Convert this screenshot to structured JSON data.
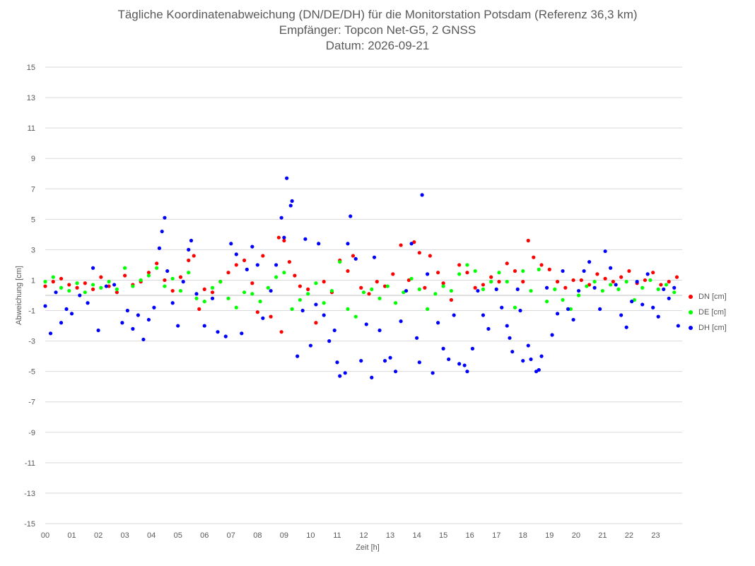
{
  "chart_data": {
    "type": "scatter",
    "title": "Tägliche Koordinatenabweichung (DN/DE/DH) für die Monitorstation Potsdam (Referenz 36,3 km)",
    "subtitle1": "Empfänger: Topcon Net-G5, 2 GNSS",
    "subtitle2": "Datum: 2026-09-21",
    "xlabel": "Zeit [h]",
    "ylabel": "Abweichung [cm]",
    "xlim": [
      0,
      24
    ],
    "ylim": [
      -15,
      15
    ],
    "x_ticks": [
      "00",
      "01",
      "02",
      "03",
      "04",
      "05",
      "06",
      "07",
      "08",
      "09",
      "10",
      "11",
      "12",
      "13",
      "14",
      "15",
      "16",
      "17",
      "18",
      "19",
      "20",
      "21",
      "22",
      "23"
    ],
    "y_ticks": [
      15,
      13,
      11,
      9,
      7,
      5,
      3,
      1,
      -1,
      -3,
      -5,
      -7,
      -9,
      -11,
      -13,
      -15
    ],
    "grid": "horizontal",
    "legend_position": "right",
    "series": [
      {
        "name": "DN [cm]",
        "color": "#ff0000",
        "values": [
          [
            0.0,
            0.6
          ],
          [
            0.3,
            0.9
          ],
          [
            0.6,
            1.1
          ],
          [
            0.9,
            0.7
          ],
          [
            1.2,
            0.5
          ],
          [
            1.5,
            0.8
          ],
          [
            1.8,
            0.4
          ],
          [
            2.1,
            1.2
          ],
          [
            2.4,
            0.6
          ],
          [
            2.7,
            0.2
          ],
          [
            3.0,
            1.3
          ],
          [
            3.3,
            0.7
          ],
          [
            3.6,
            0.9
          ],
          [
            3.9,
            1.5
          ],
          [
            4.2,
            2.1
          ],
          [
            4.5,
            1.0
          ],
          [
            4.8,
            0.3
          ],
          [
            5.1,
            1.2
          ],
          [
            5.4,
            2.3
          ],
          [
            5.6,
            2.6
          ],
          [
            5.8,
            -0.9
          ],
          [
            6.0,
            0.4
          ],
          [
            6.3,
            0.2
          ],
          [
            6.6,
            0.9
          ],
          [
            6.9,
            1.5
          ],
          [
            7.2,
            2.0
          ],
          [
            7.5,
            2.3
          ],
          [
            7.8,
            0.8
          ],
          [
            8.0,
            -1.1
          ],
          [
            8.2,
            2.6
          ],
          [
            8.5,
            -1.4
          ],
          [
            8.8,
            3.8
          ],
          [
            9.0,
            3.6
          ],
          [
            9.2,
            2.2
          ],
          [
            8.9,
            -2.4
          ],
          [
            9.4,
            1.3
          ],
          [
            9.6,
            0.6
          ],
          [
            9.9,
            0.4
          ],
          [
            10.2,
            -1.8
          ],
          [
            10.5,
            0.9
          ],
          [
            10.8,
            0.2
          ],
          [
            11.1,
            2.3
          ],
          [
            11.4,
            1.6
          ],
          [
            11.6,
            2.6
          ],
          [
            11.9,
            0.5
          ],
          [
            12.2,
            0.1
          ],
          [
            12.5,
            0.9
          ],
          [
            12.8,
            0.6
          ],
          [
            13.1,
            1.4
          ],
          [
            13.4,
            3.3
          ],
          [
            13.7,
            1.0
          ],
          [
            13.9,
            3.5
          ],
          [
            14.1,
            2.8
          ],
          [
            14.3,
            0.5
          ],
          [
            14.5,
            2.6
          ],
          [
            14.8,
            1.5
          ],
          [
            15.0,
            0.8
          ],
          [
            15.3,
            -0.3
          ],
          [
            15.6,
            2.0
          ],
          [
            15.9,
            1.5
          ],
          [
            16.2,
            0.5
          ],
          [
            16.5,
            0.7
          ],
          [
            16.8,
            1.2
          ],
          [
            17.1,
            0.9
          ],
          [
            17.4,
            2.1
          ],
          [
            17.7,
            1.6
          ],
          [
            18.0,
            0.9
          ],
          [
            18.2,
            3.6
          ],
          [
            18.4,
            2.5
          ],
          [
            18.7,
            2.0
          ],
          [
            19.0,
            1.7
          ],
          [
            19.3,
            0.9
          ],
          [
            19.6,
            0.5
          ],
          [
            19.9,
            1.0
          ],
          [
            20.2,
            1.0
          ],
          [
            20.5,
            0.7
          ],
          [
            20.8,
            1.4
          ],
          [
            21.1,
            1.1
          ],
          [
            21.4,
            0.9
          ],
          [
            21.7,
            1.2
          ],
          [
            22.0,
            1.6
          ],
          [
            22.3,
            0.8
          ],
          [
            22.6,
            1.0
          ],
          [
            22.9,
            1.5
          ],
          [
            23.2,
            0.7
          ],
          [
            23.5,
            0.9
          ],
          [
            23.8,
            1.2
          ]
        ]
      },
      {
        "name": "DE [cm]",
        "color": "#00ff00",
        "values": [
          [
            0.0,
            0.9
          ],
          [
            0.3,
            1.2
          ],
          [
            0.6,
            0.5
          ],
          [
            0.9,
            0.3
          ],
          [
            1.2,
            0.8
          ],
          [
            1.5,
            0.2
          ],
          [
            1.8,
            0.7
          ],
          [
            2.1,
            0.5
          ],
          [
            2.4,
            0.9
          ],
          [
            2.7,
            0.4
          ],
          [
            3.0,
            1.8
          ],
          [
            3.3,
            0.6
          ],
          [
            3.6,
            1.0
          ],
          [
            3.9,
            1.3
          ],
          [
            4.2,
            1.8
          ],
          [
            4.5,
            0.6
          ],
          [
            4.8,
            1.1
          ],
          [
            5.1,
            0.3
          ],
          [
            5.4,
            1.5
          ],
          [
            5.7,
            -0.2
          ],
          [
            6.0,
            -0.4
          ],
          [
            6.3,
            0.5
          ],
          [
            6.6,
            0.9
          ],
          [
            6.9,
            -0.2
          ],
          [
            7.2,
            -0.8
          ],
          [
            7.5,
            0.2
          ],
          [
            7.8,
            0.1
          ],
          [
            8.1,
            -0.4
          ],
          [
            8.4,
            0.5
          ],
          [
            8.7,
            1.2
          ],
          [
            9.0,
            1.5
          ],
          [
            9.3,
            -0.9
          ],
          [
            9.6,
            -0.3
          ],
          [
            9.9,
            0.1
          ],
          [
            10.2,
            0.8
          ],
          [
            10.5,
            -0.5
          ],
          [
            10.8,
            0.3
          ],
          [
            11.1,
            2.2
          ],
          [
            11.4,
            -0.9
          ],
          [
            11.7,
            -1.4
          ],
          [
            12.0,
            0.2
          ],
          [
            12.3,
            0.4
          ],
          [
            12.6,
            -0.2
          ],
          [
            12.9,
            0.6
          ],
          [
            13.2,
            -0.5
          ],
          [
            13.5,
            0.2
          ],
          [
            13.8,
            1.1
          ],
          [
            14.1,
            0.4
          ],
          [
            14.4,
            -0.9
          ],
          [
            14.7,
            0.1
          ],
          [
            15.0,
            0.6
          ],
          [
            15.3,
            0.3
          ],
          [
            15.6,
            1.4
          ],
          [
            15.9,
            2.0
          ],
          [
            16.2,
            1.6
          ],
          [
            16.5,
            0.4
          ],
          [
            16.8,
            0.9
          ],
          [
            17.1,
            1.5
          ],
          [
            17.4,
            0.9
          ],
          [
            17.7,
            -0.8
          ],
          [
            18.0,
            1.6
          ],
          [
            18.3,
            0.3
          ],
          [
            18.6,
            1.7
          ],
          [
            18.9,
            -0.4
          ],
          [
            19.2,
            0.4
          ],
          [
            19.5,
            -0.3
          ],
          [
            19.8,
            -0.9
          ],
          [
            20.1,
            0.0
          ],
          [
            20.4,
            0.6
          ],
          [
            20.7,
            0.9
          ],
          [
            21.0,
            0.3
          ],
          [
            21.3,
            0.7
          ],
          [
            21.6,
            0.4
          ],
          [
            21.9,
            0.9
          ],
          [
            22.2,
            -0.3
          ],
          [
            22.5,
            0.5
          ],
          [
            22.8,
            1.0
          ],
          [
            23.1,
            0.4
          ],
          [
            23.4,
            0.7
          ],
          [
            23.7,
            0.2
          ]
        ]
      },
      {
        "name": "DH [cm]",
        "color": "#0000ff",
        "values": [
          [
            0.0,
            -0.7
          ],
          [
            0.2,
            -2.5
          ],
          [
            0.4,
            0.2
          ],
          [
            0.6,
            -1.8
          ],
          [
            0.8,
            -0.9
          ],
          [
            1.0,
            -1.2
          ],
          [
            1.3,
            0.0
          ],
          [
            1.6,
            -0.5
          ],
          [
            1.8,
            1.8
          ],
          [
            2.0,
            -2.3
          ],
          [
            2.3,
            0.6
          ],
          [
            2.6,
            0.7
          ],
          [
            2.9,
            -1.8
          ],
          [
            3.1,
            -1.0
          ],
          [
            3.3,
            -2.2
          ],
          [
            3.5,
            -1.3
          ],
          [
            3.7,
            -2.9
          ],
          [
            3.9,
            -1.6
          ],
          [
            4.1,
            -0.8
          ],
          [
            4.3,
            3.1
          ],
          [
            4.4,
            4.2
          ],
          [
            4.5,
            5.1
          ],
          [
            4.6,
            1.6
          ],
          [
            4.8,
            -0.5
          ],
          [
            5.0,
            -2.0
          ],
          [
            5.2,
            0.9
          ],
          [
            5.4,
            3.0
          ],
          [
            5.5,
            3.6
          ],
          [
            5.7,
            0.1
          ],
          [
            6.0,
            -2.0
          ],
          [
            6.3,
            -0.2
          ],
          [
            6.5,
            -2.4
          ],
          [
            6.8,
            -2.7
          ],
          [
            7.0,
            3.4
          ],
          [
            7.2,
            2.7
          ],
          [
            7.4,
            -2.5
          ],
          [
            7.6,
            1.7
          ],
          [
            7.8,
            3.2
          ],
          [
            8.0,
            2.0
          ],
          [
            8.2,
            -1.5
          ],
          [
            8.5,
            0.3
          ],
          [
            8.7,
            2.0
          ],
          [
            8.9,
            5.1
          ],
          [
            9.0,
            3.8
          ],
          [
            9.1,
            7.7
          ],
          [
            9.25,
            5.9
          ],
          [
            9.3,
            6.2
          ],
          [
            9.5,
            -4.0
          ],
          [
            9.7,
            -1.0
          ],
          [
            9.8,
            3.7
          ],
          [
            10.0,
            -3.3
          ],
          [
            10.2,
            -0.6
          ],
          [
            10.3,
            3.4
          ],
          [
            10.5,
            -1.3
          ],
          [
            10.7,
            -3.0
          ],
          [
            10.9,
            -2.3
          ],
          [
            11.0,
            -4.4
          ],
          [
            11.1,
            -5.3
          ],
          [
            11.3,
            -5.1
          ],
          [
            11.4,
            3.4
          ],
          [
            11.5,
            5.2
          ],
          [
            11.7,
            2.4
          ],
          [
            11.9,
            -4.3
          ],
          [
            12.1,
            -1.9
          ],
          [
            12.3,
            -5.4
          ],
          [
            12.4,
            2.5
          ],
          [
            12.6,
            -2.3
          ],
          [
            12.8,
            -4.3
          ],
          [
            13.0,
            -4.1
          ],
          [
            13.2,
            -5.0
          ],
          [
            13.4,
            -1.7
          ],
          [
            13.6,
            0.3
          ],
          [
            13.8,
            3.4
          ],
          [
            14.0,
            -2.8
          ],
          [
            14.1,
            -4.4
          ],
          [
            14.2,
            6.6
          ],
          [
            14.4,
            1.4
          ],
          [
            14.6,
            -5.1
          ],
          [
            14.8,
            -1.8
          ],
          [
            15.0,
            -3.5
          ],
          [
            15.2,
            -4.2
          ],
          [
            15.4,
            -1.3
          ],
          [
            15.6,
            -4.5
          ],
          [
            15.8,
            -4.6
          ],
          [
            15.9,
            -5.0
          ],
          [
            16.1,
            -3.5
          ],
          [
            16.3,
            0.3
          ],
          [
            16.5,
            -1.3
          ],
          [
            16.7,
            -2.2
          ],
          [
            17.0,
            0.4
          ],
          [
            17.2,
            -0.8
          ],
          [
            17.4,
            -2.0
          ],
          [
            17.5,
            -2.8
          ],
          [
            17.6,
            -3.7
          ],
          [
            17.8,
            0.4
          ],
          [
            17.9,
            -1.0
          ],
          [
            18.0,
            -4.3
          ],
          [
            18.2,
            -3.3
          ],
          [
            18.3,
            -4.2
          ],
          [
            18.5,
            -5.0
          ],
          [
            18.6,
            -4.9
          ],
          [
            18.7,
            -4.0
          ],
          [
            18.9,
            0.5
          ],
          [
            19.1,
            -2.6
          ],
          [
            19.3,
            -1.2
          ],
          [
            19.5,
            1.6
          ],
          [
            19.7,
            -0.9
          ],
          [
            19.9,
            -1.6
          ],
          [
            20.1,
            0.3
          ],
          [
            20.3,
            1.6
          ],
          [
            20.5,
            2.2
          ],
          [
            20.7,
            0.5
          ],
          [
            20.9,
            -0.9
          ],
          [
            21.1,
            2.9
          ],
          [
            21.3,
            1.8
          ],
          [
            21.5,
            0.7
          ],
          [
            21.7,
            -1.3
          ],
          [
            21.9,
            -2.1
          ],
          [
            22.1,
            -0.4
          ],
          [
            22.3,
            0.9
          ],
          [
            22.5,
            -0.6
          ],
          [
            22.7,
            1.4
          ],
          [
            22.9,
            -0.8
          ],
          [
            23.1,
            -1.4
          ],
          [
            23.3,
            0.4
          ],
          [
            23.5,
            -0.2
          ],
          [
            23.7,
            0.5
          ],
          [
            23.85,
            -2.0
          ]
        ]
      }
    ]
  }
}
